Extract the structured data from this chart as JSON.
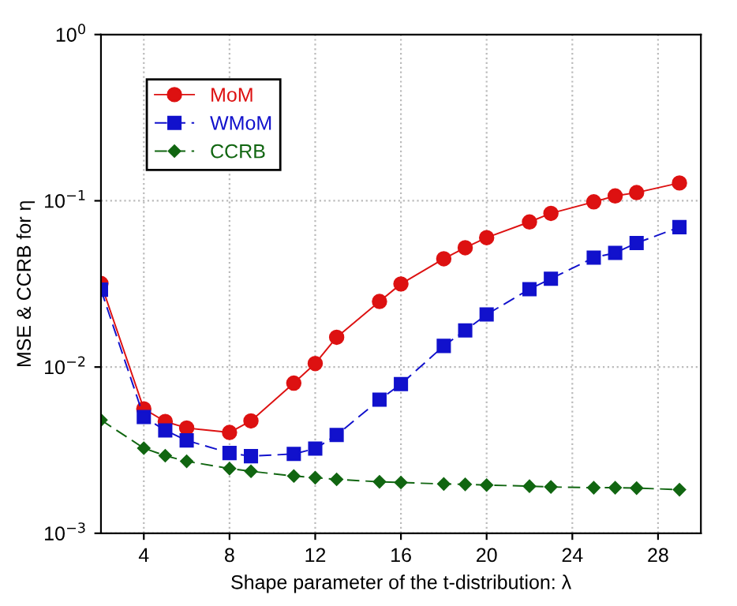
{
  "chart_data": {
    "type": "line",
    "xlabel": "Shape parameter of the t-distribution: λ",
    "ylabel": "MSE & CCRB for η",
    "x": [
      2,
      4,
      5,
      6,
      8,
      9,
      11,
      12,
      13,
      15,
      16,
      18,
      19,
      20,
      22,
      23,
      25,
      26,
      27,
      29
    ],
    "series": [
      {
        "name": "MoM",
        "color": "#dd1111",
        "marker": "circle",
        "line_style": "solid",
        "values": [
          0.0318,
          0.0056,
          0.0047,
          0.0043,
          0.00404,
          0.00474,
          0.008,
          0.0105,
          0.0151,
          0.0248,
          0.0316,
          0.0448,
          0.0522,
          0.06,
          0.0746,
          0.084,
          0.0985,
          0.107,
          0.112,
          0.128
        ]
      },
      {
        "name": "WMoM",
        "color": "#1111cc",
        "marker": "square",
        "line_style": "dashed",
        "values": [
          0.0292,
          0.005,
          0.00416,
          0.00362,
          0.00304,
          0.00291,
          0.003,
          0.00323,
          0.0039,
          0.00636,
          0.0079,
          0.0134,
          0.0166,
          0.0207,
          0.0294,
          0.034,
          0.0455,
          0.0486,
          0.0557,
          0.0694
        ]
      },
      {
        "name": "CCRB",
        "color": "#116611",
        "marker": "diamond",
        "line_style": "dashed",
        "values": [
          0.0048,
          0.00325,
          0.00293,
          0.00271,
          0.00245,
          0.00236,
          0.00221,
          0.00216,
          0.00211,
          0.00204,
          0.00202,
          0.00198,
          0.00197,
          0.00195,
          0.00192,
          0.0019,
          0.00188,
          0.00188,
          0.00187,
          0.00183
        ]
      }
    ],
    "log": "y",
    "xlim": [
      2,
      30
    ],
    "ylim": [
      0.001,
      1
    ],
    "xticks": [
      4,
      8,
      12,
      16,
      20,
      24,
      28
    ],
    "yticks": [
      {
        "value": 0.001,
        "label": "10$^{−3}$"
      },
      {
        "value": 0.01,
        "label": "10$^{−2}$"
      },
      {
        "value": 0.1,
        "label": "10$^{−1}$"
      },
      {
        "value": 1,
        "label": "10$^{0}$"
      }
    ],
    "grid": true,
    "legend": "top left"
  }
}
